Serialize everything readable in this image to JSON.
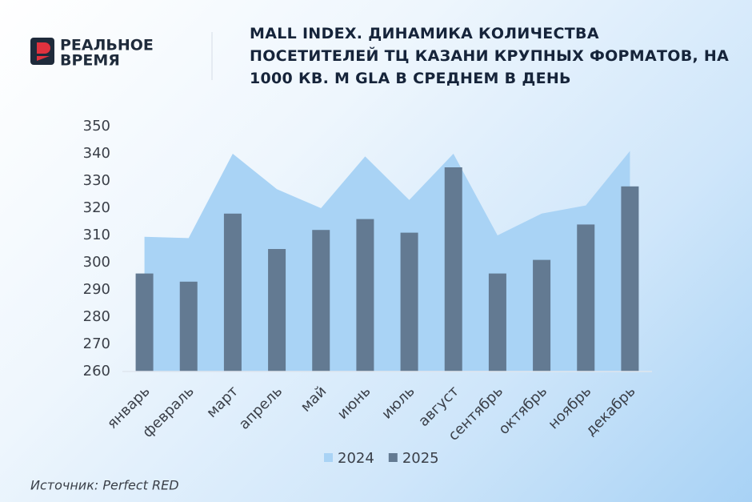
{
  "logo": {
    "line1": "РЕАЛЬНОЕ",
    "line2": "ВРЕМЯ"
  },
  "chart_data": {
    "type": "bar",
    "title": "MALL INDEX. ДИНАМИКА КОЛИЧЕСТВА ПОСЕТИТЕЛЕЙ ТЦ КАЗАНИ КРУПНЫХ ФОРМАТОВ, НА 1000 КВ. М GLA В СРЕДНЕМ В ДЕНЬ",
    "categories": [
      "январь",
      "февраль",
      "март",
      "апрель",
      "май",
      "июнь",
      "июль",
      "август",
      "сентябрь",
      "октябрь",
      "ноябрь",
      "декабрь"
    ],
    "series": [
      {
        "name": "2024",
        "type": "area",
        "color": "#a9d3f5",
        "values": [
          309.5,
          309,
          340,
          327,
          320,
          339,
          323,
          340,
          310,
          318,
          321,
          341
        ]
      },
      {
        "name": "2025",
        "type": "bar",
        "color": "#637a92",
        "values": [
          296,
          293,
          318,
          305,
          312,
          316,
          311,
          335,
          296,
          301,
          314,
          328
        ]
      }
    ],
    "ylim": [
      260,
      350
    ],
    "yticks": [
      260,
      270,
      280,
      290,
      300,
      310,
      320,
      330,
      340,
      350
    ],
    "legend": "bottom",
    "source": "Источник:  Perfect RED"
  }
}
